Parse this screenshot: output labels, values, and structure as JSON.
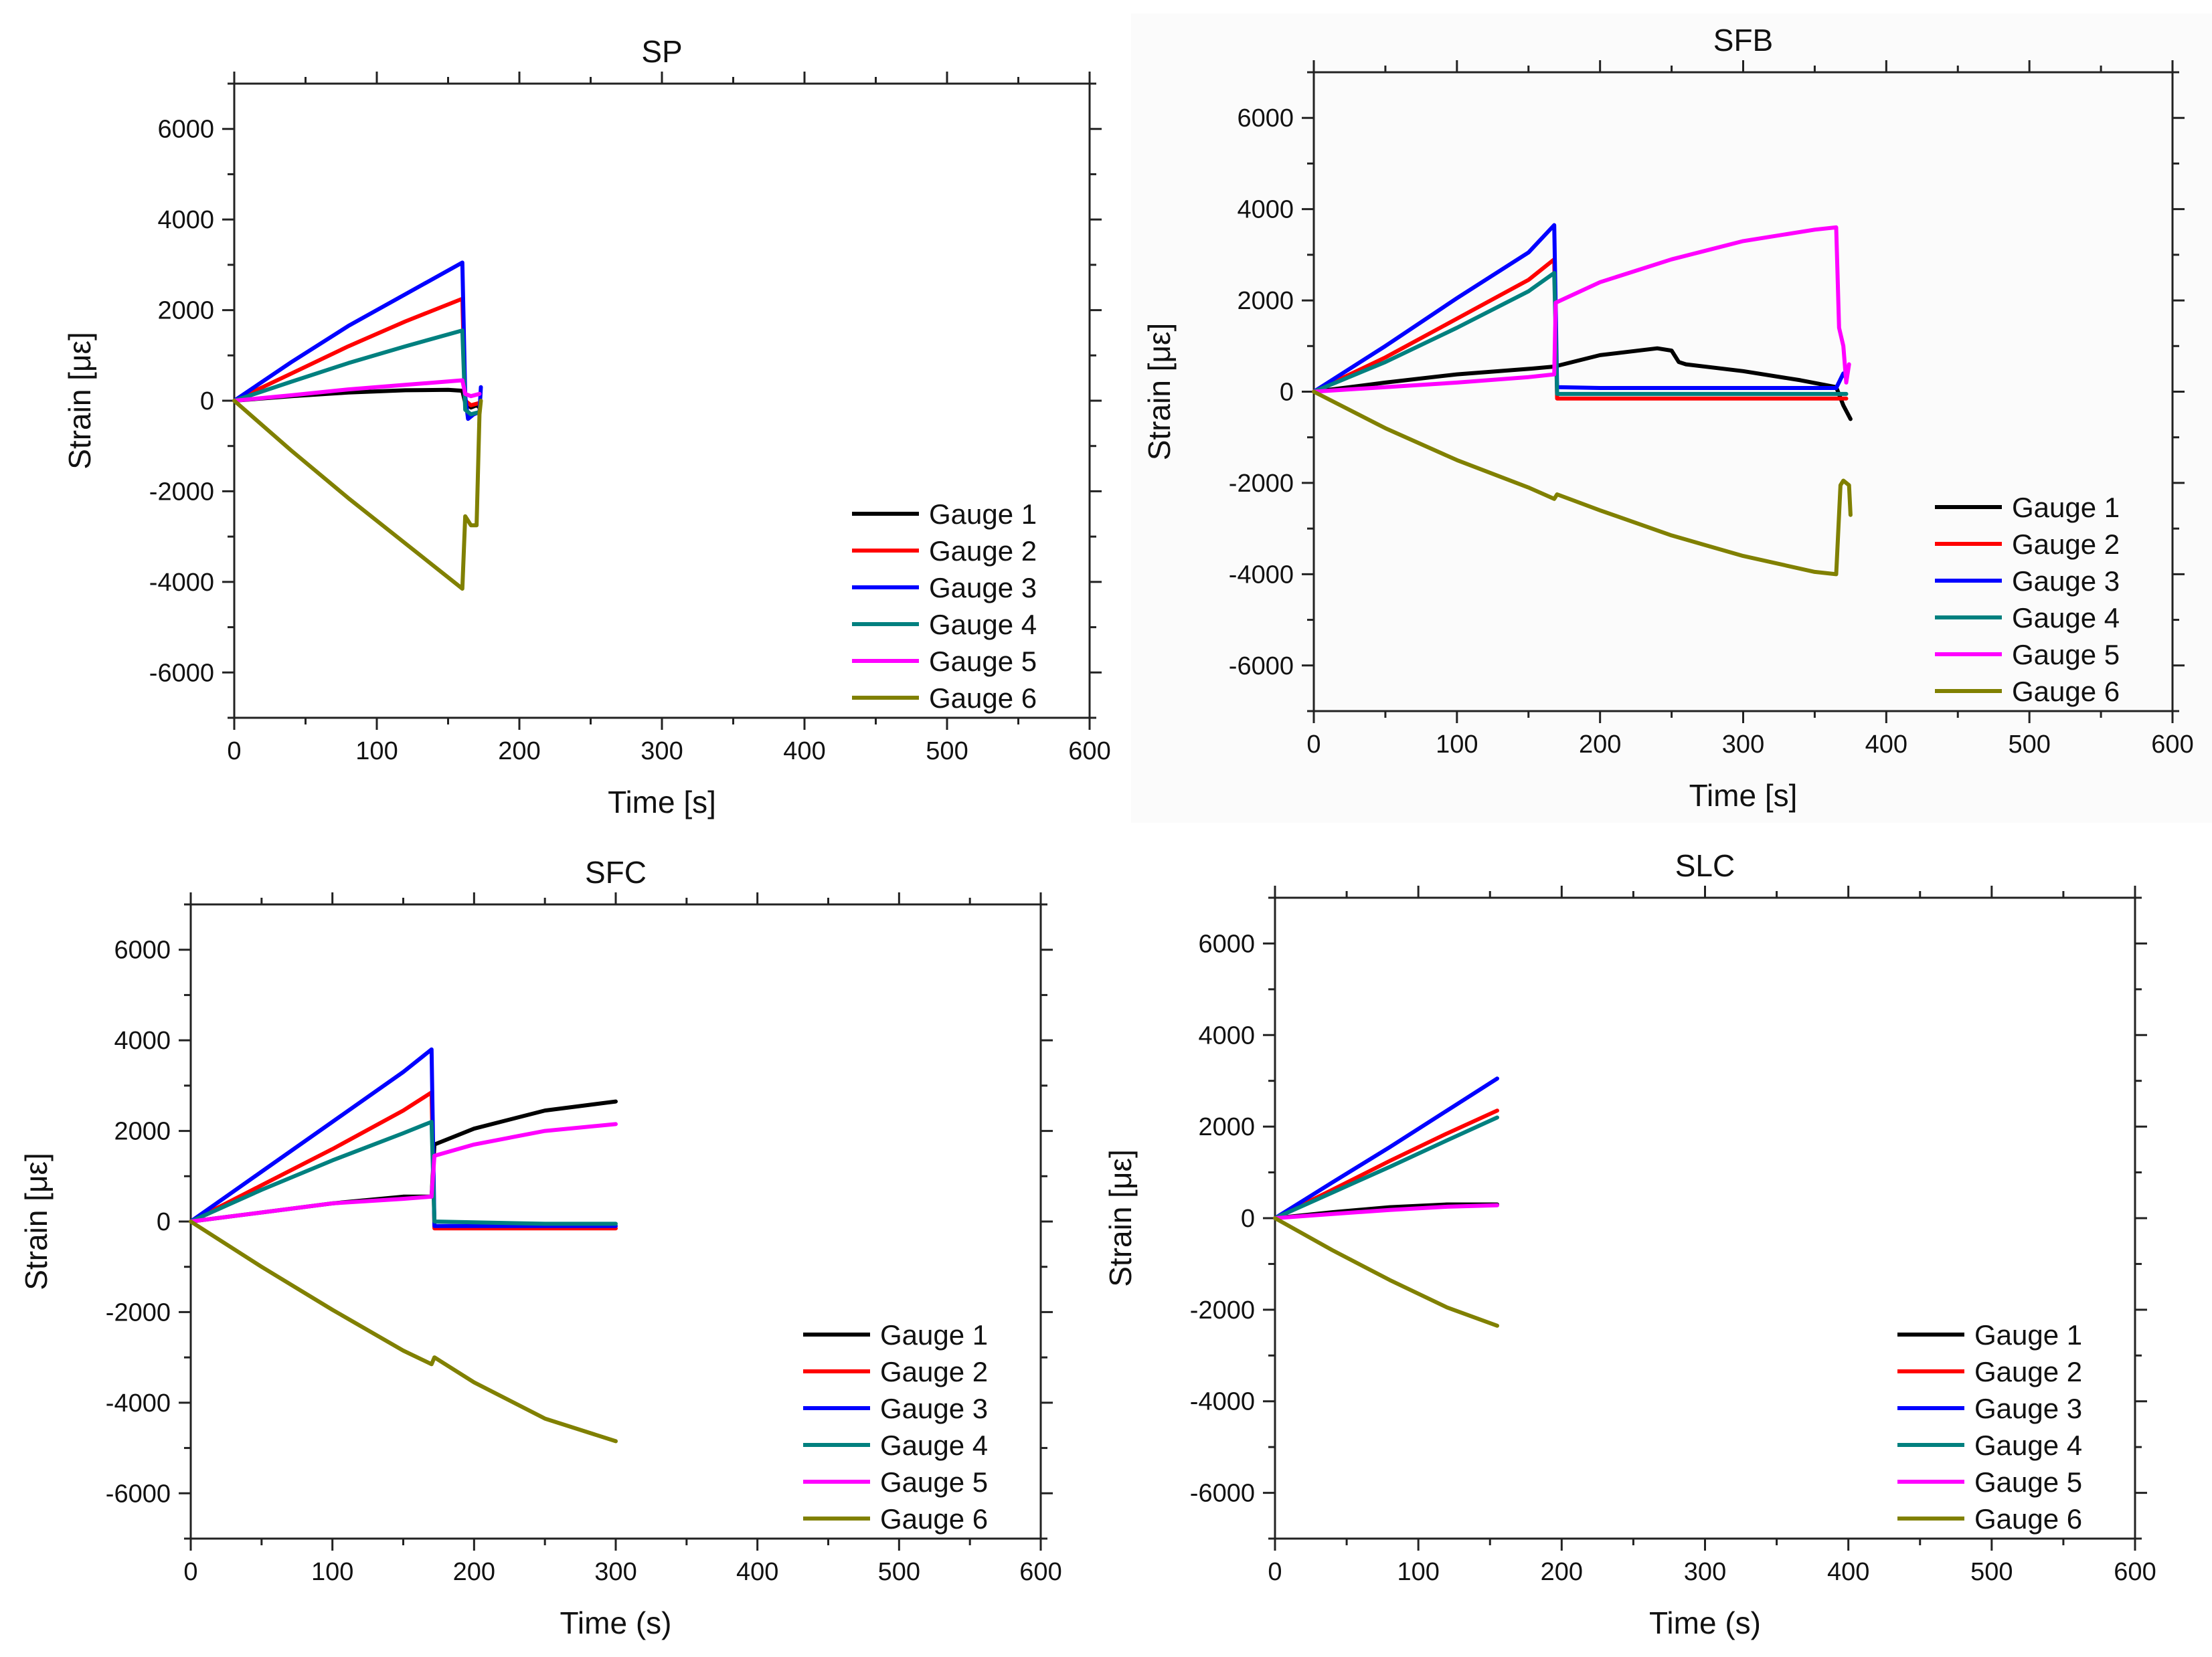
{
  "chart_data": [
    {
      "type": "line",
      "title": "SP",
      "xlabel": "Time [s]",
      "ylabel": "Strain [με]",
      "xlim": [
        0,
        600
      ],
      "ylim": [
        -7000,
        7000
      ],
      "xticks": [
        0,
        100,
        200,
        300,
        400,
        500,
        600
      ],
      "yticks": [
        -6000,
        -4000,
        -2000,
        0,
        2000,
        4000,
        6000
      ],
      "legend_position": "bottom-right",
      "series": [
        {
          "name": "Gauge 1",
          "color": "#000000",
          "x": [
            0,
            40,
            80,
            120,
            150,
            160,
            162,
            166,
            170,
            172
          ],
          "y": [
            0,
            100,
            180,
            230,
            240,
            220,
            -50,
            -150,
            -100,
            -150
          ]
        },
        {
          "name": "Gauge 2",
          "color": "#ff0000",
          "x": [
            0,
            40,
            80,
            120,
            160,
            162,
            166,
            172
          ],
          "y": [
            0,
            600,
            1200,
            1750,
            2250,
            0,
            -100,
            -50
          ]
        },
        {
          "name": "Gauge 3",
          "color": "#0000ff",
          "x": [
            0,
            40,
            80,
            120,
            160,
            162,
            164,
            168,
            172,
            173
          ],
          "y": [
            0,
            850,
            1650,
            2350,
            3050,
            100,
            -400,
            -300,
            -250,
            300
          ]
        },
        {
          "name": "Gauge 4",
          "color": "#00807f",
          "x": [
            0,
            40,
            80,
            120,
            160,
            162,
            166,
            172
          ],
          "y": [
            0,
            420,
            830,
            1200,
            1550,
            -200,
            -300,
            -250
          ]
        },
        {
          "name": "Gauge 5",
          "color": "#ff00ff",
          "x": [
            0,
            40,
            80,
            120,
            160,
            162,
            166,
            172
          ],
          "y": [
            0,
            120,
            250,
            350,
            450,
            150,
            100,
            150
          ]
        },
        {
          "name": "Gauge 6",
          "color": "#808000",
          "x": [
            0,
            40,
            80,
            120,
            160,
            162,
            166,
            170,
            172,
            173
          ],
          "y": [
            0,
            -1100,
            -2150,
            -3150,
            -4150,
            -2550,
            -2750,
            -2750,
            -300,
            0
          ]
        }
      ]
    },
    {
      "type": "line",
      "title": "SFB",
      "xlabel": "Time [s]",
      "ylabel": "Strain [με]",
      "xlim": [
        0,
        600
      ],
      "ylim": [
        -7000,
        7000
      ],
      "xticks": [
        0,
        100,
        200,
        300,
        400,
        500,
        600
      ],
      "yticks": [
        -6000,
        -4000,
        -2000,
        0,
        2000,
        4000,
        6000
      ],
      "legend_position": "bottom-right",
      "series": [
        {
          "name": "Gauge 1",
          "color": "#000000",
          "x": [
            0,
            50,
            100,
            150,
            168,
            200,
            240,
            250,
            255,
            260,
            300,
            340,
            365,
            370,
            375
          ],
          "y": [
            0,
            200,
            380,
            500,
            550,
            800,
            950,
            900,
            650,
            600,
            450,
            250,
            100,
            -300,
            -600
          ]
        },
        {
          "name": "Gauge 2",
          "color": "#ff0000",
          "x": [
            0,
            50,
            100,
            150,
            168,
            170,
            250,
            365,
            372
          ],
          "y": [
            0,
            750,
            1600,
            2450,
            2900,
            -150,
            -150,
            -150,
            -150
          ]
        },
        {
          "name": "Gauge 3",
          "color": "#0000ff",
          "x": [
            0,
            50,
            100,
            150,
            168,
            170,
            200,
            300,
            365,
            370,
            372
          ],
          "y": [
            0,
            1000,
            2050,
            3050,
            3650,
            100,
            80,
            80,
            80,
            400,
            300
          ]
        },
        {
          "name": "Gauge 4",
          "color": "#00807f",
          "x": [
            0,
            50,
            100,
            150,
            168,
            170,
            250,
            365,
            372
          ],
          "y": [
            0,
            650,
            1400,
            2200,
            2600,
            -50,
            -50,
            -50,
            -50
          ]
        },
        {
          "name": "Gauge 5",
          "color": "#ff00ff",
          "x": [
            0,
            50,
            100,
            150,
            168,
            169,
            200,
            250,
            300,
            350,
            365,
            367,
            370,
            372,
            374
          ],
          "y": [
            0,
            100,
            200,
            320,
            380,
            1950,
            2400,
            2900,
            3300,
            3550,
            3600,
            1400,
            1000,
            200,
            600
          ]
        },
        {
          "name": "Gauge 6",
          "color": "#808000",
          "x": [
            0,
            50,
            100,
            150,
            168,
            170,
            200,
            250,
            300,
            350,
            365,
            368,
            370,
            374,
            375
          ],
          "y": [
            0,
            -800,
            -1500,
            -2100,
            -2350,
            -2250,
            -2600,
            -3150,
            -3600,
            -3950,
            -4000,
            -2050,
            -1950,
            -2050,
            -2700
          ]
        }
      ]
    },
    {
      "type": "line",
      "title": "SFC",
      "xlabel": "Time (s)",
      "ylabel": "Strain [με]",
      "xlim": [
        0,
        600
      ],
      "ylim": [
        -7000,
        7000
      ],
      "xticks": [
        0,
        100,
        200,
        300,
        400,
        500,
        600
      ],
      "yticks": [
        -6000,
        -4000,
        -2000,
        0,
        2000,
        4000,
        6000
      ],
      "legend_position": "bottom-right",
      "series": [
        {
          "name": "Gauge 1",
          "color": "#000000",
          "x": [
            0,
            50,
            100,
            150,
            170,
            172,
            200,
            250,
            300
          ],
          "y": [
            0,
            200,
            400,
            550,
            550,
            1700,
            2050,
            2450,
            2650
          ]
        },
        {
          "name": "Gauge 2",
          "color": "#ff0000",
          "x": [
            0,
            50,
            100,
            150,
            170,
            172,
            250,
            300
          ],
          "y": [
            0,
            800,
            1600,
            2450,
            2850,
            -150,
            -150,
            -150
          ]
        },
        {
          "name": "Gauge 3",
          "color": "#0000ff",
          "x": [
            0,
            50,
            100,
            150,
            170,
            172,
            250,
            300
          ],
          "y": [
            0,
            1100,
            2200,
            3300,
            3800,
            -100,
            -100,
            -100
          ]
        },
        {
          "name": "Gauge 4",
          "color": "#00807f",
          "x": [
            0,
            50,
            100,
            150,
            170,
            172,
            250,
            300
          ],
          "y": [
            0,
            700,
            1350,
            1950,
            2200,
            0,
            -50,
            -50
          ]
        },
        {
          "name": "Gauge 5",
          "color": "#ff00ff",
          "x": [
            0,
            50,
            100,
            150,
            170,
            172,
            200,
            250,
            300
          ],
          "y": [
            0,
            200,
            400,
            500,
            550,
            1450,
            1700,
            2000,
            2150
          ]
        },
        {
          "name": "Gauge 6",
          "color": "#808000",
          "x": [
            0,
            50,
            100,
            150,
            170,
            172,
            200,
            250,
            300
          ],
          "y": [
            0,
            -1000,
            -1950,
            -2850,
            -3150,
            -3000,
            -3550,
            -4350,
            -4850
          ]
        }
      ]
    },
    {
      "type": "line",
      "title": "SLC",
      "xlabel": "Time (s)",
      "ylabel": "Strain [με]",
      "xlim": [
        0,
        600
      ],
      "ylim": [
        -7000,
        7000
      ],
      "xticks": [
        0,
        100,
        200,
        300,
        400,
        500,
        600
      ],
      "yticks": [
        -6000,
        -4000,
        -2000,
        0,
        2000,
        4000,
        6000
      ],
      "legend_position": "bottom-right",
      "series": [
        {
          "name": "Gauge 1",
          "color": "#000000",
          "x": [
            0,
            40,
            80,
            120,
            155
          ],
          "y": [
            0,
            130,
            240,
            300,
            300
          ]
        },
        {
          "name": "Gauge 2",
          "color": "#ff0000",
          "x": [
            0,
            40,
            80,
            120,
            155
          ],
          "y": [
            0,
            620,
            1250,
            1850,
            2350
          ]
        },
        {
          "name": "Gauge 3",
          "color": "#0000ff",
          "x": [
            0,
            40,
            80,
            120,
            155
          ],
          "y": [
            0,
            780,
            1550,
            2350,
            3050
          ]
        },
        {
          "name": "Gauge 4",
          "color": "#00807f",
          "x": [
            0,
            40,
            80,
            120,
            155
          ],
          "y": [
            0,
            560,
            1120,
            1700,
            2200
          ]
        },
        {
          "name": "Gauge 5",
          "color": "#ff00ff",
          "x": [
            0,
            40,
            80,
            120,
            155
          ],
          "y": [
            0,
            90,
            180,
            250,
            280
          ]
        },
        {
          "name": "Gauge 6",
          "color": "#808000",
          "x": [
            0,
            40,
            80,
            120,
            155
          ],
          "y": [
            0,
            -700,
            -1350,
            -1950,
            -2350
          ]
        }
      ]
    }
  ]
}
